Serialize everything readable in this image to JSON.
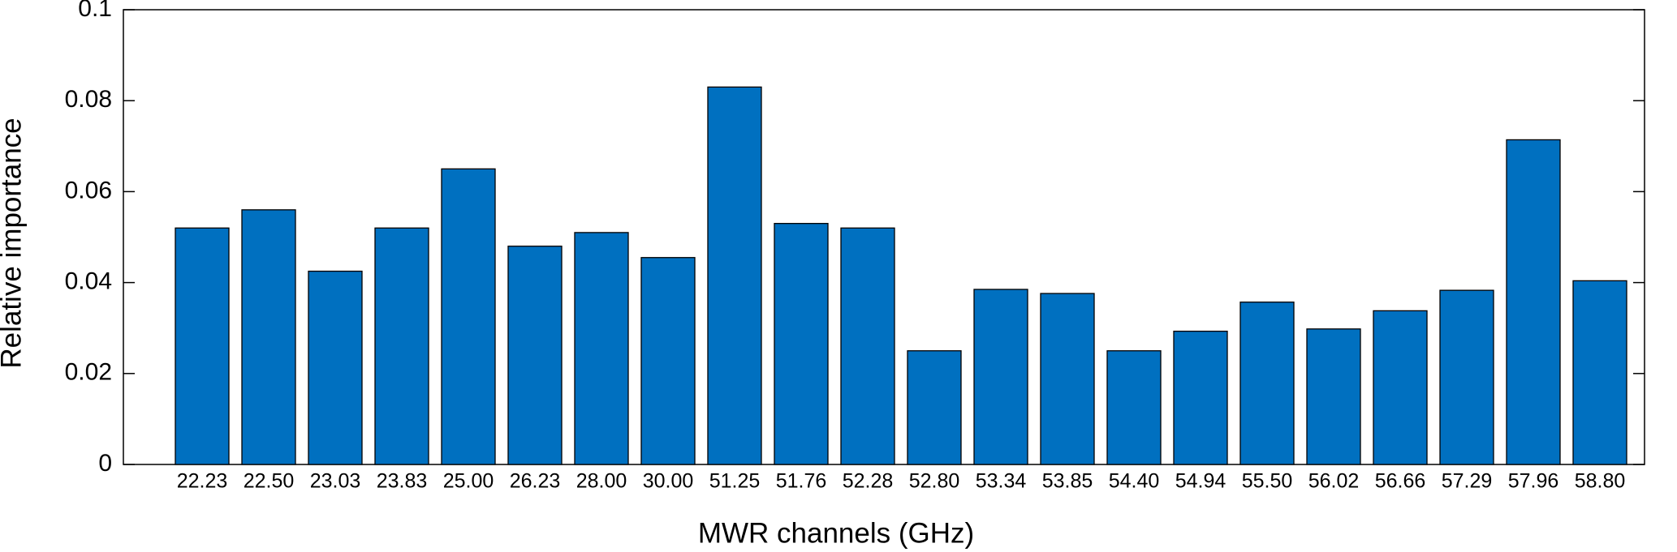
{
  "chart_data": {
    "type": "bar",
    "x_label": "MWR channels (GHz)",
    "y_label": "Relative importance",
    "categories": [
      "22.23",
      "22.50",
      "23.03",
      "23.83",
      "25.00",
      "26.23",
      "28.00",
      "30.00",
      "51.25",
      "51.76",
      "52.28",
      "52.80",
      "53.34",
      "53.85",
      "54.40",
      "54.94",
      "55.50",
      "56.02",
      "56.66",
      "57.29",
      "57.96",
      "58.80"
    ],
    "values": [
      0.052,
      0.056,
      0.0425,
      0.052,
      0.065,
      0.048,
      0.051,
      0.0455,
      0.083,
      0.053,
      0.052,
      0.025,
      0.0385,
      0.0376,
      0.025,
      0.0293,
      0.0357,
      0.0298,
      0.0338,
      0.0383,
      0.0714,
      0.0404
    ],
    "color": "#0070c0",
    "ylim": [
      0,
      0.1
    ],
    "yticks": [
      0,
      0.02,
      0.04,
      0.06,
      0.08,
      0.1
    ],
    "grid": false
  }
}
